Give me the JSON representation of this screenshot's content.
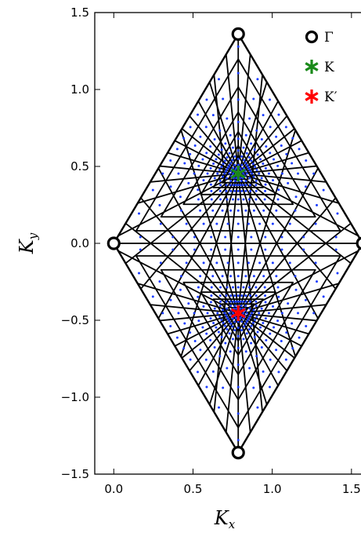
{
  "chart_data": {
    "type": "scatter",
    "title": "",
    "xlabel": "K",
    "xlabel_sub": "x",
    "ylabel": "K",
    "ylabel_sub": "y",
    "xlim": [
      -0.12,
      1.57
    ],
    "ylim": [
      -1.5,
      1.5
    ],
    "xticks": [
      0.0,
      0.5,
      1.0,
      1.5
    ],
    "xtick_labels": [
      "0.0",
      "0.5",
      "1.0",
      "1.5"
    ],
    "yticks": [
      1.5,
      1.0,
      0.5,
      0.0,
      -0.5,
      -1.0,
      -1.5
    ],
    "ytick_labels": [
      "1.5",
      "1.0",
      "0.5",
      "0.0",
      "−0.5",
      "−1.0",
      "−1.5"
    ],
    "grid": false,
    "legend_position": "top-right",
    "series": [
      {
        "name": "Γ",
        "marker": "open-circle",
        "color": "#000000",
        "points": [
          [
            0.0,
            0.0
          ],
          [
            1.5708,
            0.0
          ],
          [
            0.7854,
            1.3603
          ],
          [
            0.7854,
            -1.3603
          ]
        ]
      },
      {
        "name": "K",
        "marker": "asterisk",
        "color": "#1a8a1a",
        "points": [
          [
            0.7854,
            0.4534
          ]
        ]
      },
      {
        "name": "K′",
        "marker": "asterisk",
        "color": "#ff0000",
        "points": [
          [
            0.7854,
            -0.4534
          ]
        ]
      }
    ],
    "cell_lines_color": "#000000",
    "mesh_points_color": "#1a3cff"
  }
}
